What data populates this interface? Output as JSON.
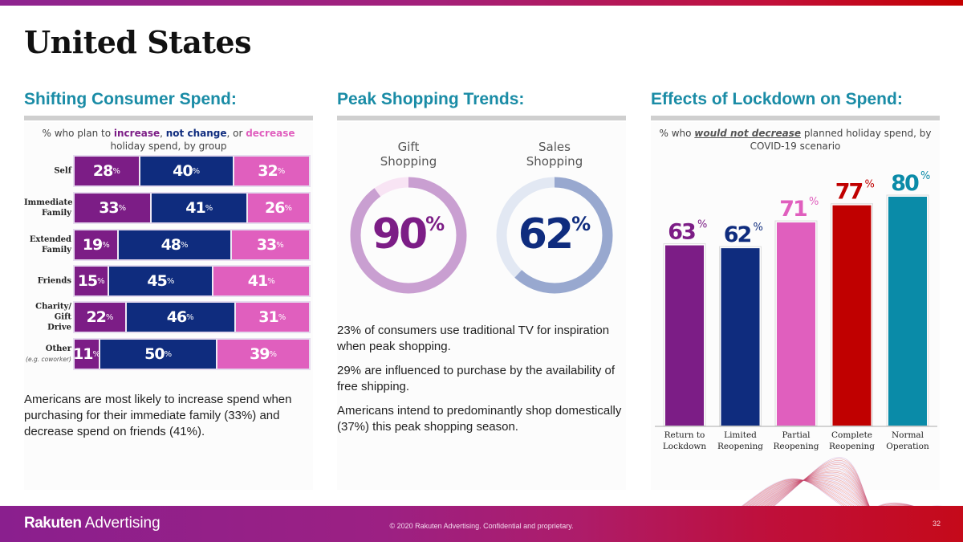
{
  "page": {
    "title": "United States",
    "colors": {
      "accent": "#1a8ca6",
      "increase": "#7c1d86",
      "not_change": "#0f2c7e",
      "decrease": "#e05fbe"
    }
  },
  "sections": {
    "consumer_spend": {
      "heading": "Shifting Consumer Spend:",
      "subtitle_parts": [
        "% who plan to ",
        "increase",
        ", ",
        "not change",
        ", or ",
        "decrease",
        " holiday spend, by group"
      ],
      "summary": "Americans are most likely to increase spend when purchasing for their immediate family (33%) and decrease spend on friends (41%)."
    },
    "peak_shopping": {
      "heading": "Peak Shopping Trends:",
      "notes": [
        "23% of consumers use traditional TV for inspiration when peak shopping.",
        "29% are influenced to purchase by the availability of free shipping.",
        "Americans intend to predominantly shop domestically (37%) this peak shopping season."
      ]
    },
    "lockdown": {
      "heading": "Effects of Lockdown on Spend:",
      "subtitle_parts": [
        "% who ",
        "would not decrease",
        " planned holiday spend, by COVID-19 scenario"
      ]
    }
  },
  "chart_data": [
    {
      "type": "bar",
      "orientation": "horizontal",
      "stacked": true,
      "title": "% who plan to increase, not change, or decrease holiday spend, by group",
      "categories": [
        "Self",
        "Immediate Family",
        "Extended Family",
        "Friends",
        "Charity/ Gift Drive",
        "Other"
      ],
      "category_notes": [
        "",
        "",
        "",
        "",
        "",
        "(e.g. coworker)"
      ],
      "series": [
        {
          "name": "increase",
          "color": "#7c1d86",
          "values": [
            28,
            33,
            19,
            15,
            22,
            11
          ]
        },
        {
          "name": "not change",
          "color": "#0f2c7e",
          "values": [
            40,
            41,
            48,
            45,
            46,
            50
          ]
        },
        {
          "name": "decrease",
          "color": "#e05fbe",
          "values": [
            32,
            26,
            33,
            41,
            31,
            39
          ]
        }
      ],
      "unit": "%",
      "legend": "inline-in-title"
    },
    {
      "type": "pie",
      "variant": "donut",
      "title": "Gift Shopping",
      "title_lines": [
        "Gift",
        "Shopping"
      ],
      "value": 90,
      "unit": "%",
      "fill_color": "#c99fd1",
      "track_color": "#f8e4f4",
      "text_color": "#7c1d86"
    },
    {
      "type": "pie",
      "variant": "donut",
      "title": "Sales Shopping",
      "title_lines": [
        "Sales",
        "Shopping"
      ],
      "value": 62,
      "unit": "%",
      "fill_color": "#98a8cf",
      "track_color": "#e2e8f3",
      "text_color": "#0f2c7e"
    },
    {
      "type": "bar",
      "orientation": "vertical",
      "title": "% who would not decrease planned holiday spend, by COVID-19 scenario",
      "categories": [
        "Return to Lockdown",
        "Limited Reopening",
        "Partial Reopening",
        "Complete Reopening",
        "Normal Operation"
      ],
      "category_lines": [
        [
          "Return to",
          "Lockdown"
        ],
        [
          "Limited",
          "Reopening"
        ],
        [
          "Partial",
          "Reopening"
        ],
        [
          "Complete",
          "Reopening"
        ],
        [
          "Normal",
          "Operation"
        ]
      ],
      "values": [
        63,
        62,
        71,
        77,
        80
      ],
      "colors": [
        "#7c1d86",
        "#0f2c7e",
        "#e05fbe",
        "#c00000",
        "#0a8ba8"
      ],
      "unit": "%",
      "ylim": [
        0,
        100
      ],
      "grid": false
    }
  ],
  "footer": {
    "logo_bold": "Rakuten",
    "logo_light": "Advertising",
    "copyright": "© 2020 Rakuten Advertising. Confidential and proprietary.",
    "page_number": "32"
  }
}
